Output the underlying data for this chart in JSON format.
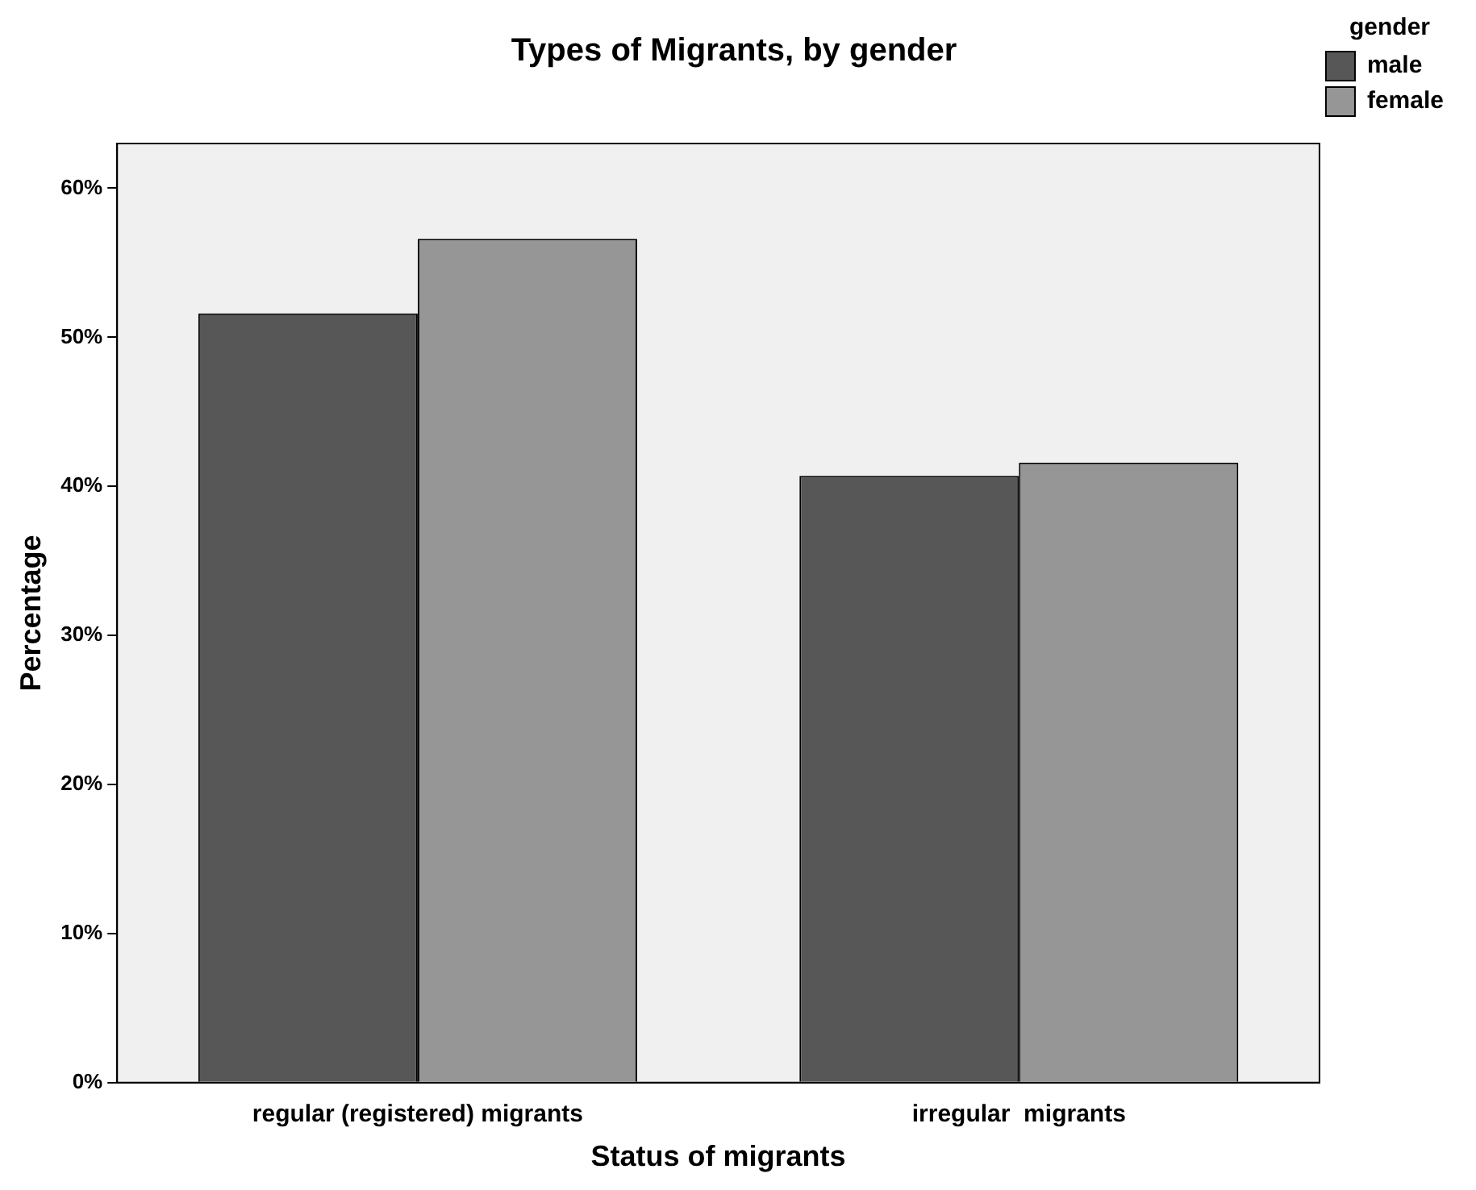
{
  "chart_data": {
    "type": "bar",
    "title": "Types of Migrants, by gender",
    "xlabel": "Status of migrants",
    "ylabel": "Percentage",
    "legend_title": "gender",
    "categories": [
      "regular (registered) migrants",
      "irregular  migrants"
    ],
    "series": [
      {
        "name": "male",
        "color": "#575757",
        "values": [
          51.6,
          40.7
        ]
      },
      {
        "name": "female",
        "color": "#969696",
        "values": [
          56.6,
          41.6
        ]
      }
    ],
    "ylim": [
      0,
      63
    ],
    "yticks": [
      {
        "value": 0,
        "label": "0%"
      },
      {
        "value": 10,
        "label": "10%"
      },
      {
        "value": 20,
        "label": "20%"
      },
      {
        "value": 30,
        "label": "30%"
      },
      {
        "value": 40,
        "label": "40%"
      },
      {
        "value": 50,
        "label": "50%"
      },
      {
        "value": 60,
        "label": "60%"
      }
    ],
    "grid": false,
    "legend": "top right"
  }
}
